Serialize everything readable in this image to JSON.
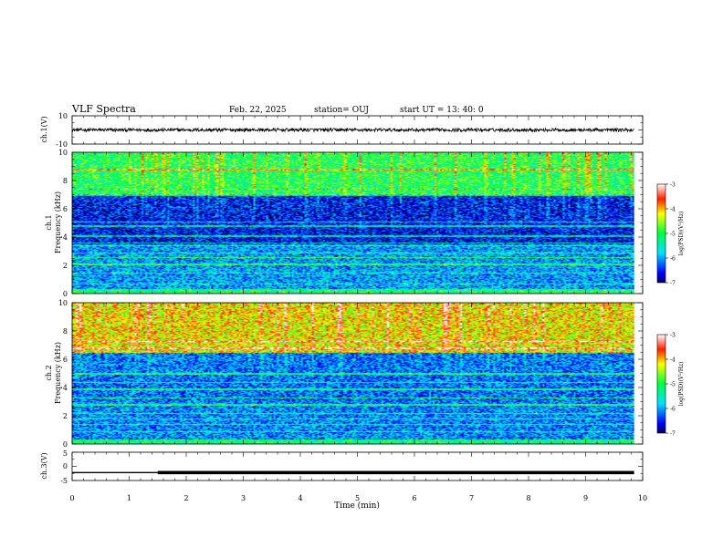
{
  "header": {
    "title": "VLF Spectra",
    "date": "Feb. 22, 2025",
    "station": "station= OUJ",
    "start": "start  UT  =   13: 40: 0"
  },
  "chart_data": [
    {
      "type": "line",
      "name": "ch1-waveform",
      "ylabel": "ch.1(V)",
      "ylim": [
        -10,
        10
      ],
      "yticks": [
        "10",
        "-10"
      ],
      "x_range_min": [
        0,
        9.85
      ],
      "level_v": 0,
      "noise_v": 1.2
    },
    {
      "type": "heatmap",
      "name": "ch1-spectrogram",
      "ylabel": [
        "ch.1",
        "Frequency (kHz)"
      ],
      "ylim_khz": [
        0,
        10
      ],
      "yticks": [
        "0",
        "2",
        "4",
        "6",
        "8",
        "10"
      ],
      "x_range_min": [
        0,
        9.85
      ],
      "color_range_log": [
        -7,
        -3
      ],
      "colorbar": {
        "label": "log(PSD)(V²/Hz)",
        "ticks": [
          "-3",
          "-4",
          "-5",
          "-6",
          "-7"
        ]
      },
      "profile": {
        "high_band_khz": [
          7,
          10
        ],
        "high_band_level": -5.1,
        "mid_band_khz": [
          3.5,
          7
        ],
        "mid_band_level": -6.6,
        "low_band_khz": [
          0,
          3.5
        ],
        "low_band_level": -6.0
      },
      "lines_khz": [
        0.7,
        1.5,
        2.1,
        2.6,
        2.9,
        3.4,
        3.6,
        4.1,
        4.8,
        5.1,
        7.0,
        7.4,
        8.8
      ]
    },
    {
      "type": "heatmap",
      "name": "ch2-spectrogram",
      "ylabel": [
        "ch.2",
        "Frequency (kHz)"
      ],
      "ylim_khz": [
        0,
        10
      ],
      "yticks": [
        "0",
        "2",
        "4",
        "6",
        "8",
        "10"
      ],
      "x_range_min": [
        0,
        9.85
      ],
      "color_range_log": [
        -7,
        -3
      ],
      "colorbar": {
        "label": "log(PSD)(V²/Hz)",
        "ticks": [
          "-3",
          "-4",
          "-5",
          "-6",
          "-7"
        ]
      },
      "profile": {
        "high_band_khz": [
          6.5,
          10
        ],
        "high_band_level": -4.3,
        "mid_band_khz": [
          3,
          6.5
        ],
        "mid_band_level": -6.2,
        "low_band_khz": [
          0,
          3
        ],
        "low_band_level": -6.1
      },
      "lines_khz": [
        0.9,
        1.4,
        1.8,
        2.2,
        2.8,
        3.3,
        3.9,
        4.4,
        5.0,
        6.8,
        7.3
      ]
    },
    {
      "type": "line",
      "name": "ch3-trace",
      "ylabel": "ch.3(V)",
      "ylim": [
        -5,
        5
      ],
      "yticks": [
        "5",
        "0",
        "-5"
      ],
      "x_range_min": [
        0,
        9.85
      ],
      "segments": [
        {
          "x": [
            0,
            1.5
          ],
          "y": -2.2,
          "weight": "thin"
        },
        {
          "x": [
            1.5,
            9.85
          ],
          "y": -2.2,
          "weight": "thick"
        }
      ]
    }
  ],
  "x_axis": {
    "label": "Time (min)",
    "xlim": [
      0,
      10
    ],
    "ticks": [
      "0",
      "1",
      "2",
      "3",
      "4",
      "5",
      "6",
      "7",
      "8",
      "9",
      "10"
    ]
  }
}
